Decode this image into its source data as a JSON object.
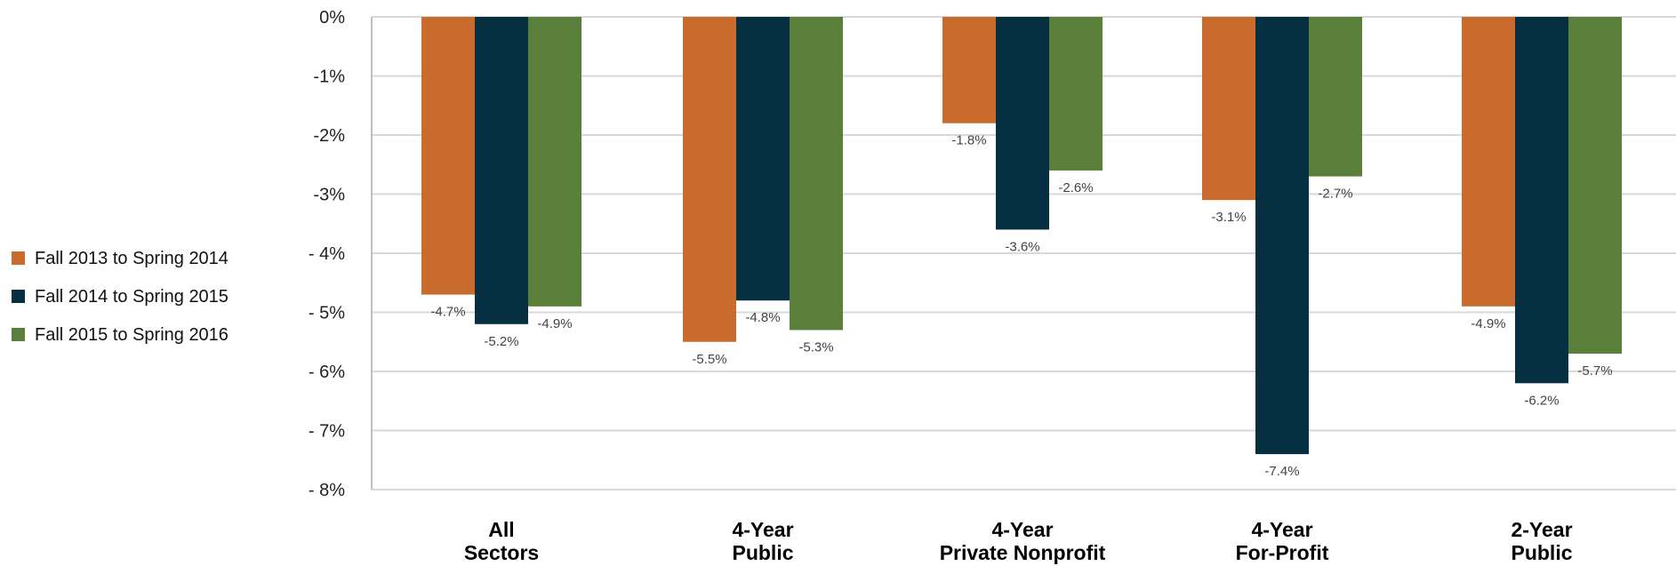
{
  "chart_data": {
    "type": "bar",
    "title": "",
    "xlabel": "",
    "ylabel": "",
    "categories": [
      [
        "All",
        "Sectors"
      ],
      [
        "4-Year",
        "Public"
      ],
      [
        "4-Year",
        "Private Nonprofit"
      ],
      [
        "4-Year",
        "For-Profit"
      ],
      [
        "2-Year",
        "Public"
      ]
    ],
    "series": [
      {
        "name": "Fall 2013 to Spring 2014",
        "color": "#c96b2c",
        "values": [
          -4.7,
          -5.5,
          -1.8,
          -3.1,
          -4.9
        ],
        "labels": [
          "-4.7%",
          "-5.5%",
          "-1.8%",
          "-3.1%",
          "-4.9%"
        ]
      },
      {
        "name": "Fall 2014 to Spring 2015",
        "color": "#063042",
        "values": [
          -5.2,
          -4.8,
          -3.6,
          -7.4,
          -6.2
        ],
        "labels": [
          "-5.2%",
          "-4.8%",
          "-3.6%",
          "-7.4%",
          "-6.2%"
        ]
      },
      {
        "name": "Fall 2015 to Spring 2016",
        "color": "#5a7f3b",
        "values": [
          -4.9,
          -5.3,
          -2.6,
          -2.7,
          -5.7
        ],
        "labels": [
          "-4.9%",
          "-5.3%",
          "-2.6%",
          "-2.7%",
          "-5.7%"
        ]
      }
    ],
    "ylim": [
      -8,
      0
    ],
    "yticks": [
      0,
      -1,
      -2,
      -3,
      -4,
      -5,
      -6,
      -7,
      -8
    ],
    "ytick_labels": [
      "0%",
      "-1%",
      "-2%",
      "-3%",
      "- 4%",
      "- 5%",
      "- 6%",
      "- 7%",
      "- 8%"
    ],
    "grid": true,
    "legend_position": "left"
  }
}
